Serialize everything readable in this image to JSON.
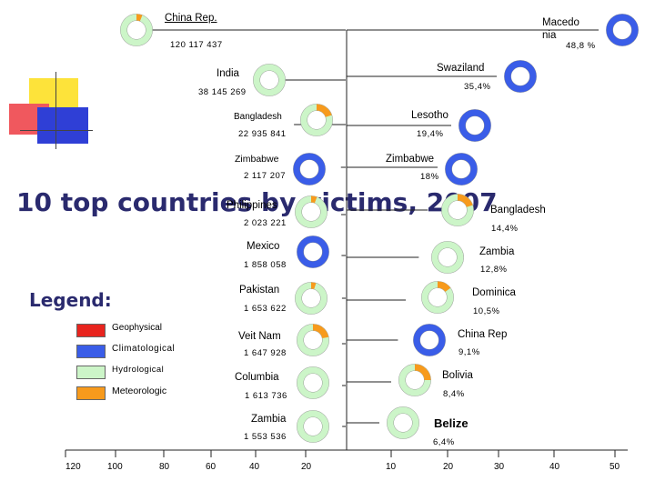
{
  "title": "10 top countries by victims, 2007",
  "legend": {
    "title": "Legend:",
    "items": [
      {
        "label": "Geophysical",
        "color": "#e8241e"
      },
      {
        "label": "Climatological",
        "color": "#3a5de8"
      },
      {
        "label": "Hydrological",
        "color": "#ccf5c8"
      },
      {
        "label": "Meteorologic",
        "color": "#f79a1c"
      }
    ]
  },
  "chart_data": [
    {
      "type": "bar",
      "title": "10 top countries by victims, 2007",
      "series_label": "victims",
      "categories": [
        "China Rep.",
        "India",
        "Bangladesh",
        "Zimbabwe",
        "Philippines",
        "Mexico",
        "Pakistan",
        "Veit Nam",
        "Columbia",
        "Zambia"
      ],
      "values_text": [
        "120 117 437",
        "38 145 269",
        "22 935 841",
        "2 117 207",
        "2 023 221",
        "1 858 058",
        "1 653 622",
        "1 647 928",
        "1 613 736",
        "1 553 536"
      ],
      "values": [
        120117437,
        38145269,
        22935841,
        2117207,
        2023221,
        1858058,
        1653622,
        1647928,
        1613736,
        1553536
      ],
      "axis_ticks": [
        "120",
        "100",
        "80",
        "60",
        "40",
        "20"
      ],
      "donut_meteorological_share": [
        0.06,
        0.0,
        0.2,
        0.0,
        0.06,
        0.0,
        0.05,
        0.22,
        0.0,
        0.0
      ],
      "donut_climatological_share": [
        0.0,
        0.0,
        0.0,
        1.0,
        0.0,
        1.0,
        0.0,
        0.0,
        0.0,
        0.0
      ]
    },
    {
      "type": "bar",
      "series_label": "percent",
      "categories": [
        "Macedo nia",
        "Swaziland",
        "Lesotho",
        "Zimbabwe",
        "Bangladesh",
        "Zambia",
        "Dominica",
        "China Rep",
        "Bolivia",
        "Belize"
      ],
      "values_text": [
        "48,8 %",
        "35,4%",
        "19,4%",
        "18%",
        "14,4%",
        "12,8%",
        "10,5%",
        "9,1%",
        "8,4%",
        "6,4%"
      ],
      "values": [
        48.8,
        35.4,
        19.4,
        18,
        14.4,
        12.8,
        10.5,
        9.1,
        8.4,
        6.4
      ],
      "axis_ticks": [
        "10",
        "20",
        "30",
        "40",
        "50"
      ],
      "donut_meteorological_share": [
        0.0,
        0.0,
        0.0,
        0.0,
        0.2,
        0.0,
        0.15,
        0.0,
        0.25,
        0.0
      ],
      "donut_climatological_share": [
        1.0,
        1.0,
        1.0,
        1.0,
        0.0,
        0.0,
        0.0,
        1.0,
        0.0,
        0.0
      ]
    }
  ]
}
